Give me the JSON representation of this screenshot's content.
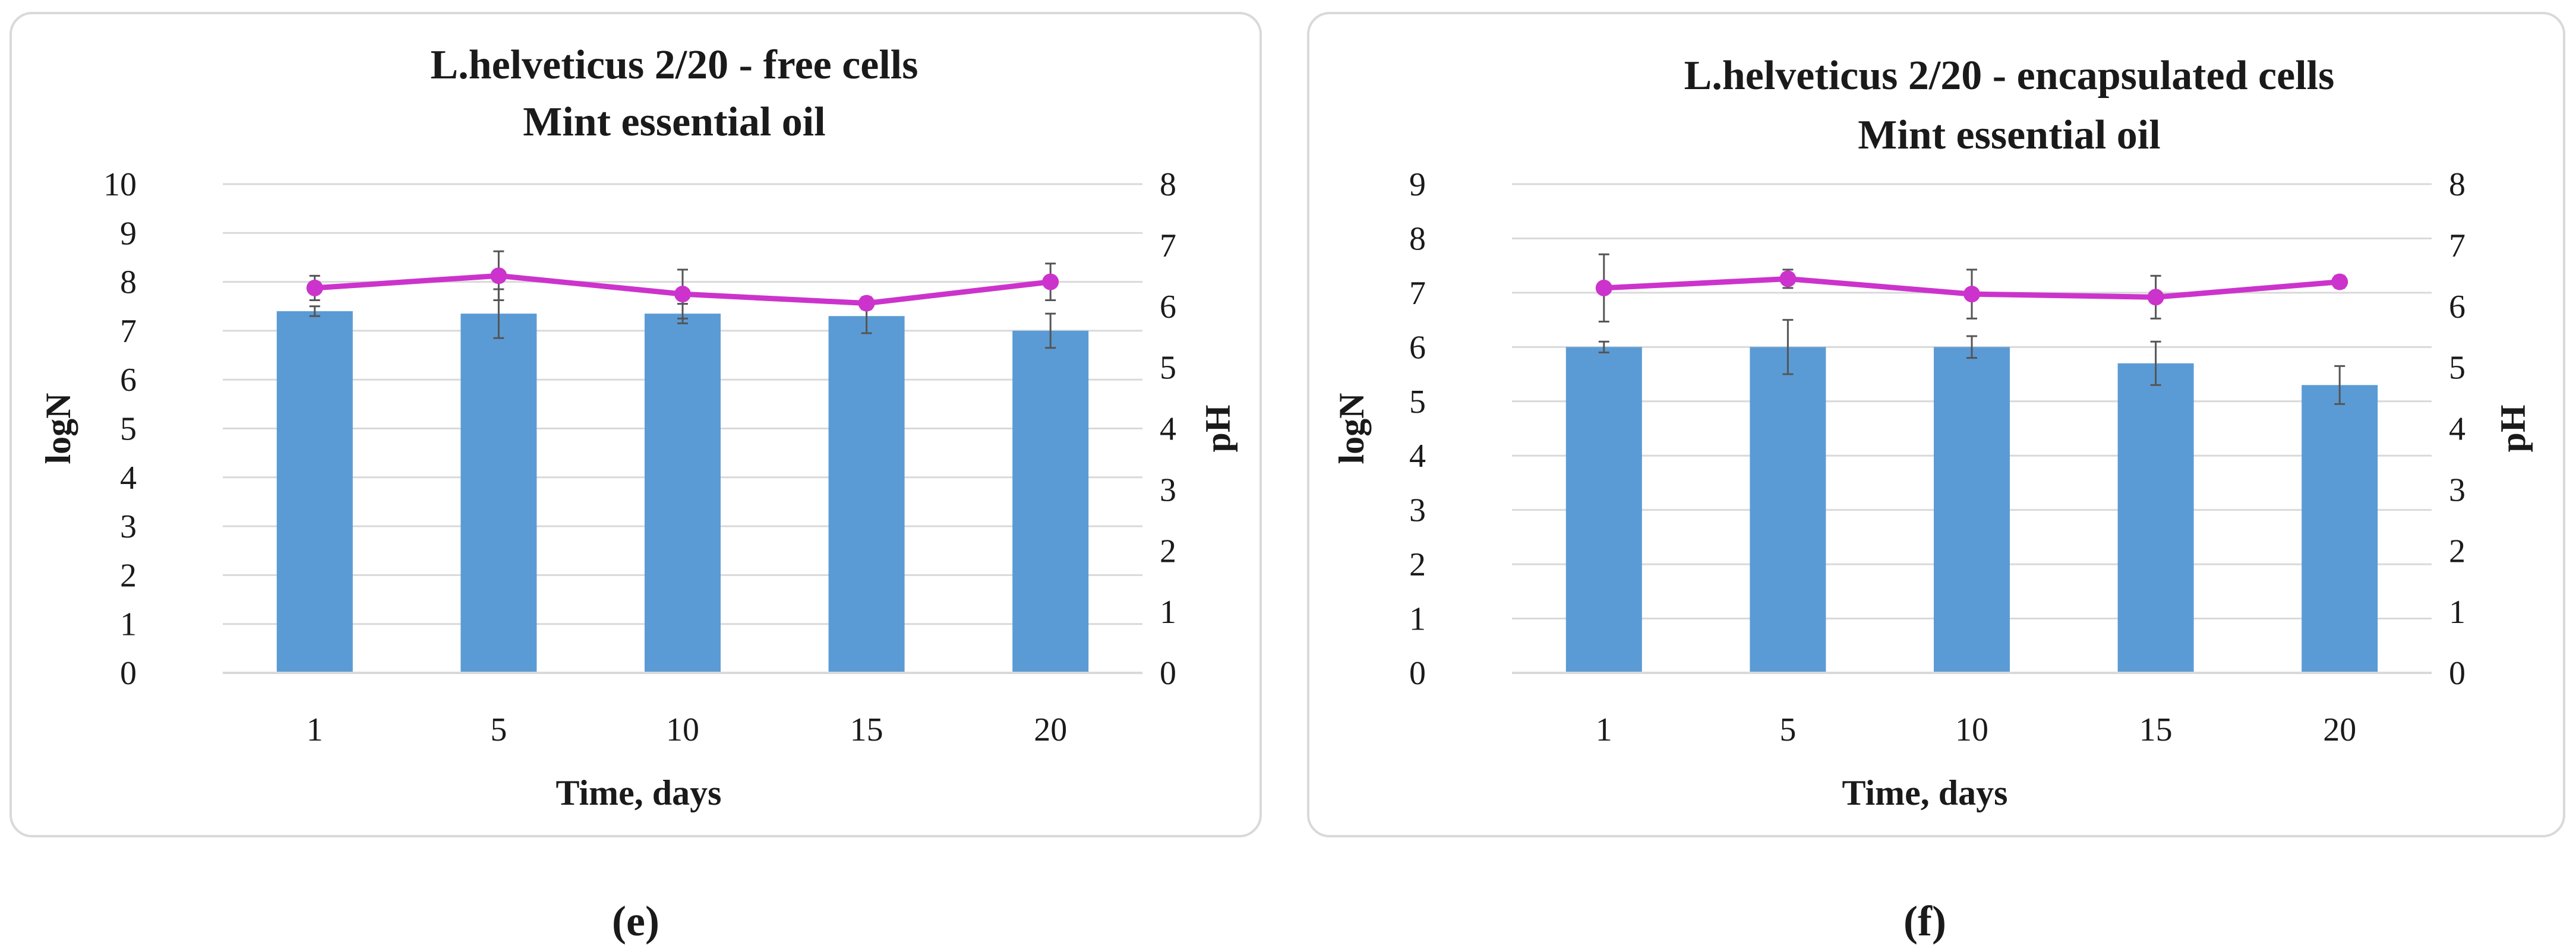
{
  "colors": {
    "bar": "#5b9bd5",
    "line": "#cc33cc",
    "grid": "#d9d9d9",
    "text": "#1a1a1a",
    "frame": "#d9d9d9"
  },
  "chart_data": [
    {
      "type": "bar+line",
      "panel_label": "(e)",
      "title": [
        "L.helveticus 2/20 - free cells",
        "Mint essential oil"
      ],
      "xlabel": "Time, days",
      "ylabel_left": "logN",
      "ylabel_right": "pH",
      "categories": [
        "1",
        "5",
        "10",
        "15",
        "20"
      ],
      "ylim_left": [
        0,
        10
      ],
      "yticks_left": [
        "0",
        "1",
        "2",
        "3",
        "4",
        "5",
        "6",
        "7",
        "8",
        "9",
        "10"
      ],
      "ylim_right": [
        0,
        8
      ],
      "yticks_right": [
        "0",
        "1",
        "2",
        "3",
        "4",
        "5",
        "6",
        "7",
        "8"
      ],
      "grid": true,
      "series": [
        {
          "name": "logN",
          "axis": "left",
          "kind": "bar",
          "values": [
            7.4,
            7.35,
            7.35,
            7.3,
            7.0
          ],
          "errors": [
            0.1,
            0.5,
            0.2,
            0.35,
            0.35
          ]
        },
        {
          "name": "pH",
          "axis": "right",
          "kind": "line",
          "values": [
            6.3,
            6.5,
            6.2,
            6.05,
            6.4
          ],
          "errors": [
            0.2,
            0.4,
            0.4,
            0.1,
            0.3
          ]
        }
      ]
    },
    {
      "type": "bar+line",
      "panel_label": "(f)",
      "title": [
        "L.helveticus 2/20 - encapsulated cells",
        "Mint essential oil"
      ],
      "xlabel": "Time, days",
      "ylabel_left": "logN",
      "ylabel_right": "pH",
      "categories": [
        "1",
        "5",
        "10",
        "15",
        "20"
      ],
      "ylim_left": [
        0,
        9
      ],
      "yticks_left": [
        "0",
        "1",
        "2",
        "3",
        "4",
        "5",
        "6",
        "7",
        "8",
        "9"
      ],
      "ylim_right": [
        0,
        8
      ],
      "yticks_right": [
        "0",
        "1",
        "2",
        "3",
        "4",
        "5",
        "6",
        "7",
        "8"
      ],
      "grid": true,
      "series": [
        {
          "name": "logN",
          "axis": "left",
          "kind": "bar",
          "values": [
            6.0,
            6.0,
            6.0,
            5.7,
            5.3
          ],
          "errors": [
            0.1,
            0.5,
            0.2,
            0.4,
            0.35
          ]
        },
        {
          "name": "pH",
          "axis": "right",
          "kind": "line",
          "values": [
            6.3,
            6.45,
            6.2,
            6.15,
            6.4
          ],
          "errors": [
            0.55,
            0.15,
            0.4,
            0.35,
            0.1
          ]
        }
      ]
    }
  ]
}
